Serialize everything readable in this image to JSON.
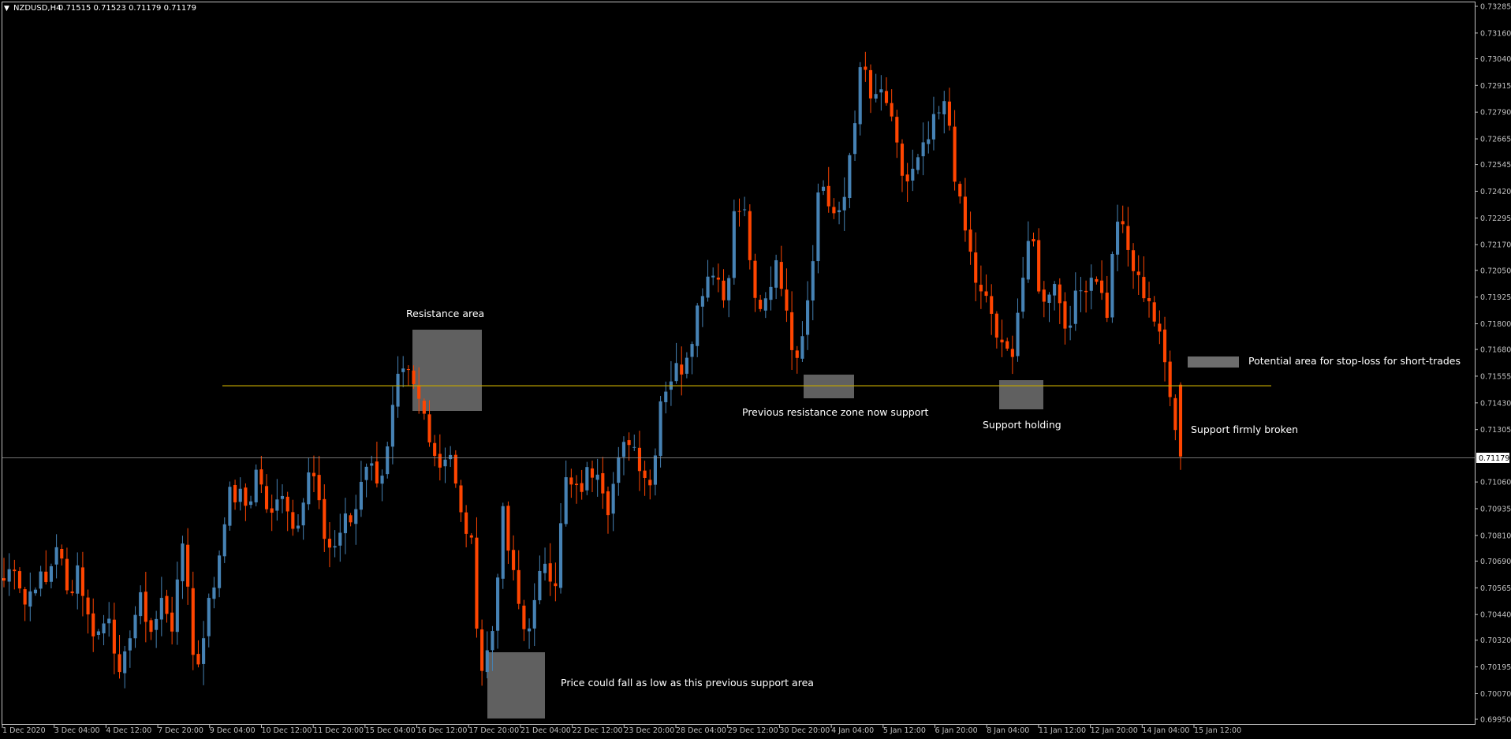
{
  "header": {
    "symbol": "NZDUSD,H4",
    "quote": "0.71515 0.71523 0.71179 0.71179"
  },
  "colors": {
    "background": "#000000",
    "bull": "#4682B4",
    "bear": "#FF4500",
    "wick_bull": "#4682B4",
    "wick_bear": "#FF4500",
    "axis": "#C0C0C0",
    "hline": "#BFA500",
    "zone": "#808080",
    "text": "#FFFFFF"
  },
  "chart_data": {
    "type": "candlestick",
    "symbol": "NZDUSD",
    "timeframe": "H4",
    "ylim": [
      0.6995,
      0.73285
    ],
    "y_ticks": [
      "0.73285",
      "0.73160",
      "0.73040",
      "0.72915",
      "0.72790",
      "0.72665",
      "0.72545",
      "0.72420",
      "0.72295",
      "0.72170",
      "0.72050",
      "0.71925",
      "0.71800",
      "0.71680",
      "0.71555",
      "0.71430",
      "0.71305",
      "0.71060",
      "0.70935",
      "0.70810",
      "0.70690",
      "0.70565",
      "0.70440",
      "0.70320",
      "0.70195",
      "0.70070",
      "0.69950"
    ],
    "current_price": "0.71179",
    "x_ticks": [
      "1 Dec 2020",
      "3 Dec 04:00",
      "4 Dec 12:00",
      "7 Dec 20:00",
      "9 Dec 04:00",
      "10 Dec 12:00",
      "11 Dec 20:00",
      "15 Dec 04:00",
      "16 Dec 12:00",
      "17 Dec 20:00",
      "21 Dec 04:00",
      "22 Dec 12:00",
      "23 Dec 20:00",
      "28 Dec 04:00",
      "29 Dec 12:00",
      "30 Dec 20:00",
      "4 Jan 04:00",
      "5 Jan 12:00",
      "6 Jan 20:00",
      "8 Jan 04:00",
      "11 Jan 12:00",
      "12 Jan 20:00",
      "14 Jan 04:00",
      "15 Jan 12:00"
    ],
    "horizontal_line": 0.7151,
    "key_points": [
      0.706,
      0.7069,
      0.7049,
      0.7061,
      0.7058,
      0.7079,
      0.7052,
      0.7068,
      0.704,
      0.7035,
      0.7047,
      0.7008,
      0.7041,
      0.705,
      0.7035,
      0.7052,
      0.7038,
      0.7085,
      0.7013,
      0.7042,
      0.7062,
      0.7098,
      0.71,
      0.7094,
      0.7115,
      0.7083,
      0.7108,
      0.7088,
      0.7092,
      0.7114,
      0.7084,
      0.7073,
      0.7087,
      0.7088,
      0.7118,
      0.7109,
      0.7113,
      0.715,
      0.7156,
      0.7145,
      0.7133,
      0.7113,
      0.7124,
      0.709,
      0.7081,
      0.7018,
      0.7032,
      0.7091,
      0.7062,
      0.7037,
      0.7046,
      0.7071,
      0.706,
      0.7106,
      0.71,
      0.7109,
      0.7115,
      0.7096,
      0.7114,
      0.7128,
      0.7116,
      0.7104,
      0.7148,
      0.7156,
      0.7161,
      0.7178,
      0.72,
      0.7208,
      0.719,
      0.7235,
      0.723,
      0.718,
      0.7192,
      0.7215,
      0.7175,
      0.7168,
      0.7199,
      0.725,
      0.7233,
      0.7227,
      0.7269,
      0.7303,
      0.728,
      0.729,
      0.7265,
      0.7245,
      0.7252,
      0.7263,
      0.7276,
      0.7282,
      0.7238,
      0.7216,
      0.7193,
      0.7188,
      0.7167,
      0.7165,
      0.7199,
      0.7221,
      0.7186,
      0.7205,
      0.7179,
      0.7189,
      0.72,
      0.7205,
      0.7183,
      0.7231,
      0.7214,
      0.7199,
      0.7193,
      0.7172,
      0.7151,
      0.7118
    ]
  },
  "annotations": [
    {
      "id": "resistance",
      "label": "Resistance area"
    },
    {
      "id": "prev-resistance",
      "label": "Previous resistance zone now support"
    },
    {
      "id": "support-holding",
      "label": "Support holding"
    },
    {
      "id": "stop-loss",
      "label": "Potential area for stop-loss for short-trades"
    },
    {
      "id": "support-broken",
      "label": "Support firmly broken"
    },
    {
      "id": "price-fall",
      "label": "Price could fall as low as this previous support area"
    }
  ]
}
